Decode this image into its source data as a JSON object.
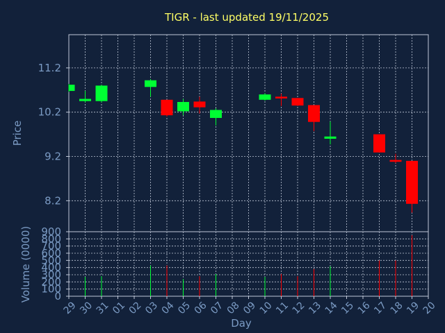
{
  "colors": {
    "background": "#12213a",
    "title": "#ffff66",
    "axis_text": "#7b9bc4",
    "grid": "#c0c8d8",
    "up": "#00ff33",
    "down": "#ff0000",
    "frame": "#c0c8d8"
  },
  "chart_data": {
    "type": "candlestick",
    "title": "TIGR - last updated 19/11/2025",
    "xlabel": "Day",
    "price_panel": {
      "ylabel": "Price",
      "ylim": [
        7.5,
        11.95
      ],
      "yticks": [
        8.2,
        9.2,
        10.2,
        11.2
      ],
      "ytick_labels": [
        "8.2",
        "9.2",
        "10.2",
        "11.2"
      ]
    },
    "volume_panel": {
      "ylabel": "Volume (0000)",
      "ylim": [
        0,
        900
      ],
      "yticks": [
        0,
        100,
        200,
        300,
        400,
        500,
        600,
        700,
        800,
        900
      ],
      "ytick_labels": [
        "0",
        "100",
        "200",
        "300",
        "400",
        "500",
        "600",
        "700",
        "800",
        "900"
      ]
    },
    "x_tick_labels": [
      "29",
      "30",
      "31",
      "01",
      "02",
      "03",
      "04",
      "05",
      "06",
      "07",
      "08",
      "09",
      "10",
      "11",
      "12",
      "13",
      "14",
      "15",
      "16",
      "17",
      "18",
      "19",
      "20"
    ],
    "grid": true,
    "candles": [
      {
        "day": "29",
        "open": 10.68,
        "close": 10.82,
        "high": 10.84,
        "low": 10.66,
        "volume": 0
      },
      {
        "day": "30",
        "open": 10.45,
        "close": 10.5,
        "high": 10.68,
        "low": 10.42,
        "volume": 270
      },
      {
        "day": "31",
        "open": 10.45,
        "close": 10.8,
        "high": 10.82,
        "low": 10.42,
        "volume": 280
      },
      {
        "day": "03",
        "open": 10.77,
        "close": 10.92,
        "high": 10.95,
        "low": 10.55,
        "volume": 430
      },
      {
        "day": "04",
        "open": 10.48,
        "close": 10.13,
        "high": 10.48,
        "low": 10.1,
        "volume": 430
      },
      {
        "day": "05",
        "open": 10.22,
        "close": 10.43,
        "high": 10.5,
        "low": 10.13,
        "volume": 240
      },
      {
        "day": "06",
        "open": 10.44,
        "close": 10.31,
        "high": 10.55,
        "low": 10.17,
        "volume": 280
      },
      {
        "day": "07",
        "open": 10.07,
        "close": 10.25,
        "high": 10.29,
        "low": 9.9,
        "volume": 310
      },
      {
        "day": "10",
        "open": 10.48,
        "close": 10.6,
        "high": 10.63,
        "low": 10.46,
        "volume": 270
      },
      {
        "day": "11",
        "open": 10.55,
        "close": 10.51,
        "high": 10.62,
        "low": 10.34,
        "volume": 310
      },
      {
        "day": "12",
        "open": 10.52,
        "close": 10.35,
        "high": 10.52,
        "low": 10.34,
        "volume": 280
      },
      {
        "day": "13",
        "open": 10.36,
        "close": 9.98,
        "high": 10.36,
        "low": 9.77,
        "volume": 380
      },
      {
        "day": "14",
        "open": 9.6,
        "close": 9.65,
        "high": 9.99,
        "low": 9.47,
        "volume": 420
      },
      {
        "day": "17",
        "open": 9.7,
        "close": 9.29,
        "high": 9.7,
        "low": 9.29,
        "volume": 500
      },
      {
        "day": "18",
        "open": 9.12,
        "close": 9.08,
        "high": 9.26,
        "low": 9.05,
        "volume": 500
      },
      {
        "day": "19",
        "open": 9.1,
        "close": 8.13,
        "high": 9.1,
        "low": 7.93,
        "volume": 850
      }
    ]
  }
}
